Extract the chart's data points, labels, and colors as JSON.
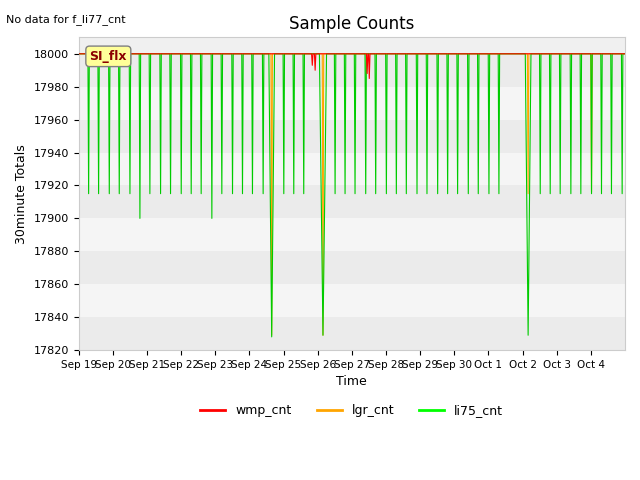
{
  "title": "Sample Counts",
  "no_data_text": "No data for f_li77_cnt",
  "ylabel": "30minute Totals",
  "xlabel": "Time",
  "ylim": [
    17820,
    18010
  ],
  "yticks": [
    17820,
    17840,
    17860,
    17880,
    17900,
    17920,
    17940,
    17960,
    17980,
    18000
  ],
  "legend_labels": [
    "wmp_cnt",
    "lgr_cnt",
    "li75_cnt"
  ],
  "legend_colors": [
    "red",
    "orange",
    "lime"
  ],
  "si_flx_box_color": "#ffff99",
  "si_flx_text_color": "#8B0000",
  "x_tick_labels": [
    "Sep 19",
    "Sep 20",
    "Sep 21",
    "Sep 22",
    "Sep 23",
    "Sep 24",
    "Sep 25",
    "Sep 26",
    "Sep 27",
    "Sep 28",
    "Sep 29",
    "Sep 30",
    "Oct 1",
    "Oct 2",
    "Oct 3",
    "Oct 4"
  ],
  "green_line_color": "#00cc00",
  "red_line_color": "red",
  "orange_line_color": "orange"
}
